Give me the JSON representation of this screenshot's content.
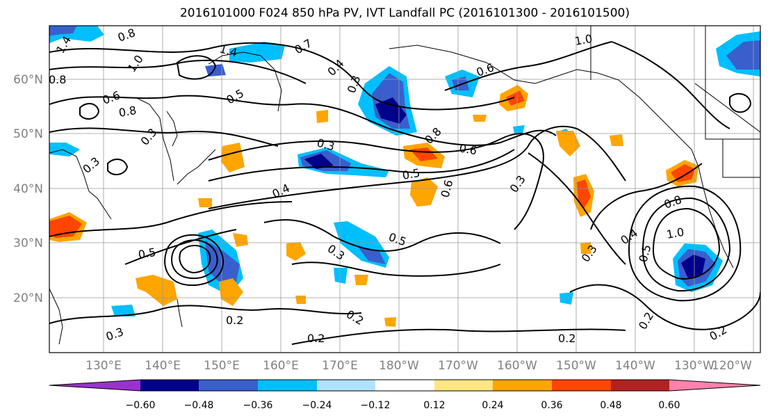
{
  "title": "2016101000 F024 850 hPa PV, IVT Landfall PC (2016101300 - 2016101500)",
  "lat_labels": [
    "60°N",
    "50°N",
    "40°N",
    "30°N",
    "20°N"
  ],
  "lon_labels": [
    "130°E",
    "140°E",
    "150°E",
    "160°E",
    "170°E",
    "180°W",
    "170°W",
    "160°W",
    "150°W",
    "140°W",
    "130°W",
    "120°W"
  ],
  "colorbar": {
    "colors": [
      "#9932cc",
      "#00008b",
      "#3a5fcd",
      "#00bfff",
      "#b0e2ff",
      "#ffffff",
      "#ffe680",
      "#ffa500",
      "#ff4500",
      "#b22222",
      "#ff82ab"
    ],
    "tick_labels": [
      "−0.60",
      "−0.48",
      "−0.36",
      "−0.24",
      "−0.12",
      "0.12",
      "0.24",
      "0.36",
      "0.48",
      "0.60"
    ]
  },
  "contour_labels": [
    "1.4",
    "0.8",
    "1.0",
    "1.4",
    "0.8",
    "0.6",
    "0.8",
    "0.5",
    "0.7",
    "0.4",
    "0.3",
    "1.0",
    "0.6",
    "0.3",
    "0.8",
    "0.6",
    "0.3",
    "0.3",
    "0.5",
    "0.6",
    "0.4",
    "0.3",
    "0.5",
    "0.3",
    "0.5",
    "0.3",
    "0.8",
    "1.0",
    "0.4",
    "0.5",
    "0.2",
    "0.2",
    "0.2",
    "0.2",
    "0.2",
    "0.2",
    "0.3"
  ]
}
